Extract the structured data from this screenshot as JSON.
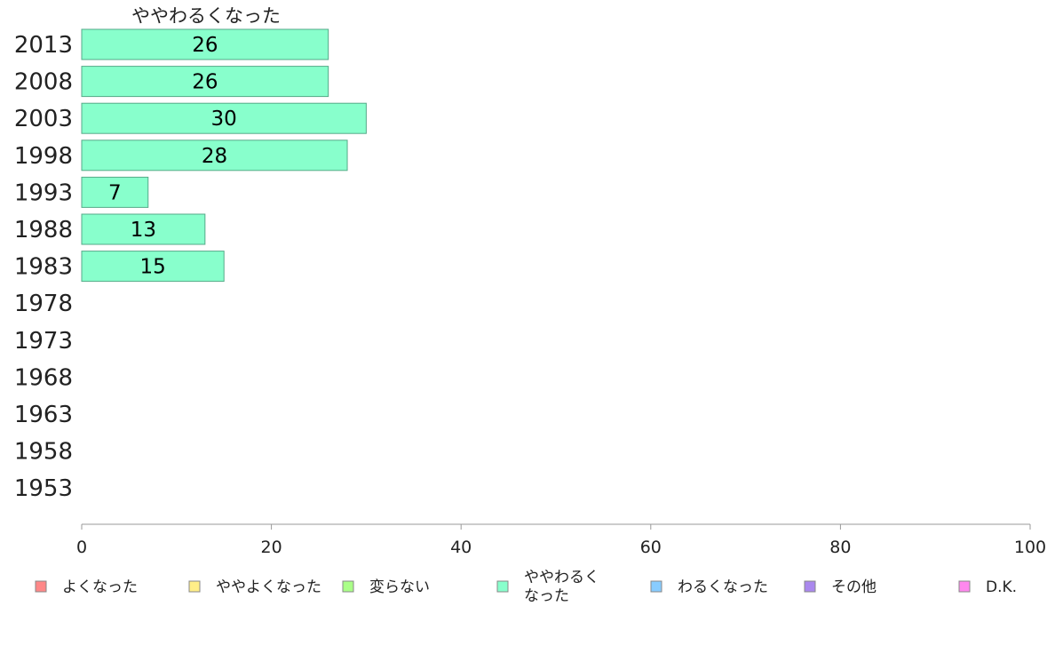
{
  "chart_data": {
    "type": "bar",
    "orientation": "horizontal",
    "title": "ややわるくなった",
    "categories": [
      "2013",
      "2008",
      "2003",
      "1998",
      "1993",
      "1988",
      "1983",
      "1978",
      "1973",
      "1968",
      "1963",
      "1958",
      "1953"
    ],
    "series": [
      {
        "name": "ややわるくなった",
        "color": "#88ffcc",
        "values": [
          26,
          26,
          30,
          28,
          7,
          13,
          15,
          null,
          null,
          null,
          null,
          null,
          null
        ]
      }
    ],
    "xlim": [
      0,
      100
    ],
    "xticks": [
      0,
      20,
      40,
      60,
      80,
      100
    ],
    "grid": false,
    "legend_position": "bottom",
    "legend": [
      {
        "label": "よくなった",
        "color": "#ff8888"
      },
      {
        "label": "ややよくなった",
        "color": "#ffee88"
      },
      {
        "label": "変らない",
        "color": "#aaff88"
      },
      {
        "label": "ややわるく\nなった",
        "color": "#88ffcc"
      },
      {
        "label": "わるくなった",
        "color": "#88ccff"
      },
      {
        "label": "その他",
        "color": "#aa88ee"
      },
      {
        "label": "D.K.",
        "color": "#ff88ee"
      }
    ]
  }
}
